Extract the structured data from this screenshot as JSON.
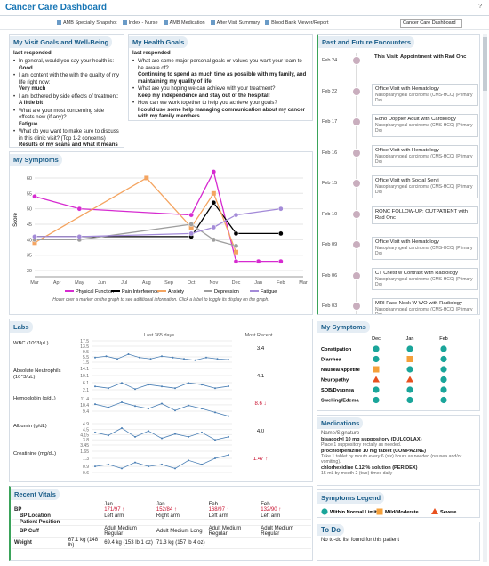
{
  "header": {
    "title": "Cancer Care Dashboard",
    "help": "?"
  },
  "toolbar": {
    "items": [
      "AMB Specialty Snapshot",
      "Index - Nurse",
      "AMB Medication",
      "After Visit Summary",
      "Blood Bank Viewer/Report"
    ],
    "search": "Cancer Care Dashboard"
  },
  "visit_goals": {
    "title": "My Visit Goals and Well-Being",
    "status": "last responded",
    "items": [
      {
        "q": "In general, would you say your health is:",
        "a": "Good"
      },
      {
        "q": "I am content with the with the quality of my life right now:",
        "a": "Very much"
      },
      {
        "q": "I am bothered by side effects of treatment:",
        "a": "A little bit"
      },
      {
        "q": "What are your most concerning side effects now (if any)?",
        "a": "Fatigue"
      },
      {
        "q": "What do you want to make sure to discuss in this clinic visit? (Top 1-2 concerns)",
        "a": "Results of my scans and what it means moving forward"
      }
    ]
  },
  "health_goals": {
    "title": "My Health Goals",
    "status": "last responded",
    "items": [
      {
        "q": "What are some major personal goals or values you want your team to be aware of?",
        "a": "Continuing to spend as much time as possible with my family, and maintaining my quality of life"
      },
      {
        "q": "What are you hoping we can achieve with your treatment?",
        "a": "Keep my independence and stay out of the hospital!"
      },
      {
        "q": "How can we work together to help you achieve your goals?",
        "a": "I could use some help managing communication about my cancer with my family members"
      }
    ]
  },
  "encounters": {
    "title": "Past and Future Encounters",
    "items": [
      {
        "date": "Feb 24",
        "text": "This Visit: Appointment with Rad Onc"
      },
      {
        "date": "Feb 22",
        "text": "Office Visit with Hematology",
        "sub": "Nasopharyngeal carcinoma (CMS-HCC) (Primary Dx)"
      },
      {
        "date": "Feb 17",
        "text": "Echo Doppler Adult with Cardiology",
        "sub": "Nasopharyngeal carcinoma (CMS-HCC) (Primary Dx)"
      },
      {
        "date": "Feb 16",
        "text": "Office Visit with Hematology",
        "sub": "Nasopharyngeal carcinoma (CMS-HCC) (Primary Dx)"
      },
      {
        "date": "Feb 15",
        "text": "Office Visit with Social Servi",
        "sub": "Nasopharyngeal carcinoma (CMS-HCC) (Primary Dx)"
      },
      {
        "date": "Feb 10",
        "text": "RONC FOLLOW-UP: OUTPATIENT with Rad Onc"
      },
      {
        "date": "Feb 09",
        "text": "Office Visit with Hematology",
        "sub": "Nasopharyngeal carcinoma (CMS-HCC) (Primary Dx)"
      },
      {
        "date": "Feb 06",
        "text": "CT Chest w Contrast with Radiology",
        "sub": "Nasopharyngeal carcinoma (CMS-HCC) (Primary Dx)"
      },
      {
        "date": "Feb 03",
        "text": "MRI Face Neck W WO with Radiology",
        "sub": "Nasopharyngeal carcinoma (CMS-HCC) (Primary Dx)"
      }
    ]
  },
  "chart_data": {
    "type": "line",
    "title": "My Symptoms",
    "y_label": "Score",
    "categories": [
      "Mar",
      "Apr",
      "May",
      "Jun",
      "Jul",
      "Aug",
      "Sep",
      "Oct",
      "Nov",
      "Dec",
      "Jan",
      "Feb",
      "Mar"
    ],
    "ylim": [
      28,
      62
    ],
    "yticks": [
      30,
      35,
      40,
      45,
      50,
      55,
      60
    ],
    "grid": true,
    "series": [
      {
        "name": "Physical Function",
        "color": "#d62ad0",
        "marker": "circle",
        "values": [
          54,
          null,
          50,
          null,
          null,
          null,
          null,
          48,
          62,
          33,
          33,
          33,
          null
        ]
      },
      {
        "name": "Pain Interference",
        "color": "#000000",
        "marker": "circle",
        "values": [
          41,
          null,
          41,
          null,
          null,
          null,
          null,
          41,
          52,
          42,
          null,
          42,
          null
        ]
      },
      {
        "name": "Anxiety",
        "color": "#f4a460",
        "marker": "square",
        "values": [
          39,
          null,
          null,
          null,
          null,
          60,
          null,
          44,
          55,
          36,
          null,
          null,
          null
        ]
      },
      {
        "name": "Depression",
        "color": "#9e9e9e",
        "marker": "circle",
        "values": [
          40,
          null,
          40,
          null,
          null,
          null,
          null,
          45,
          40,
          38,
          null,
          null,
          null
        ]
      },
      {
        "name": "Fatigue",
        "color": "#a38ad8",
        "marker": "circle",
        "values": [
          41,
          null,
          41,
          null,
          null,
          null,
          null,
          42,
          44,
          48,
          null,
          50,
          null
        ]
      }
    ],
    "note": "Hover over a marker on the graph to see additional information. Click a label to toggle its display on the graph."
  },
  "labs": {
    "title": "Labs",
    "period": "Last 365 days",
    "recent_header": "Most Recent",
    "rows": [
      {
        "name": "WBC (10^3/µL)",
        "ticks": [
          17.5,
          13.5,
          9.5,
          5.5,
          1.5
        ],
        "ylim": [
          1.5,
          17.5
        ],
        "values": [
          5,
          6,
          4,
          7.5,
          5,
          4,
          6,
          5,
          4,
          3,
          5,
          4,
          3.4
        ],
        "recent": "3.4"
      },
      {
        "name": "Absolute Neutrophils (10^3/µL)",
        "ticks": [
          14.1,
          10.1,
          6.1,
          2.1
        ],
        "ylim": [
          2.1,
          14.1
        ],
        "values": [
          4,
          3,
          6,
          2.5,
          5,
          4,
          3,
          6,
          5,
          3,
          4.1
        ],
        "recent": "4.1"
      },
      {
        "name": "Hemoglobin (g/dL)",
        "ticks": [
          11.4,
          10.4,
          9.4
        ],
        "ylim": [
          8.4,
          11.8
        ],
        "values": [
          10.5,
          10,
          10.8,
          10.2,
          9.8,
          10.6,
          9.5,
          10.3,
          9.8,
          9.2,
          8.6
        ],
        "recent": "8.6",
        "flag": "down"
      },
      {
        "name": "Albumin (g/dL)",
        "ticks": [
          4.9,
          4.5,
          4.15,
          3.8,
          3.45
        ],
        "ylim": [
          3.45,
          4.9
        ],
        "values": [
          4.3,
          4.1,
          4.6,
          4,
          4.4,
          3.9,
          4.2,
          4,
          4.3,
          3.8,
          4
        ],
        "recent": "4.0"
      },
      {
        "name": "Creatinine (mg/dL)",
        "ticks": [
          1.65,
          1.3,
          0.9,
          0.6
        ],
        "ylim": [
          0.6,
          1.65
        ],
        "values": [
          0.9,
          1,
          0.8,
          1.1,
          0.9,
          1,
          0.8,
          1.2,
          1,
          1.3,
          1.47
        ],
        "recent": "1.47",
        "flag": "up"
      }
    ],
    "line_color": "#4a7fb5"
  },
  "symptom_grid": {
    "title": "My Symptoms",
    "columns": [
      "Dec",
      "Jan",
      "Feb"
    ],
    "rows": [
      {
        "name": "Constipation",
        "status": [
          0,
          0,
          0
        ]
      },
      {
        "name": "Diarrhea",
        "status": [
          0,
          1,
          0
        ]
      },
      {
        "name": "Nausea/Appetite",
        "status": [
          1,
          0,
          0
        ]
      },
      {
        "name": "Neuropathy",
        "status": [
          2,
          2,
          0
        ]
      },
      {
        "name": "SOB/Dyspnea",
        "status": [
          0,
          0,
          0
        ]
      },
      {
        "name": "Swelling/Edema",
        "status": [
          0,
          0,
          0
        ]
      }
    ]
  },
  "medications": {
    "title": "Medications",
    "header": "Name/Signature",
    "items": [
      {
        "name": "bisacodyl 10 mg suppository (DULCOLAX)",
        "sig": "Place 1 suppository rectally as needed."
      },
      {
        "name": "prochlorperazine 10 mg tablet (COMPAZINE)",
        "sig": "Take 1 tablet by mouth every 6 (six) hours as needed (nausea and/or vomiting)."
      },
      {
        "name": "chlorhexidine 0.12 % solution (PERIDEX)",
        "sig": "15 mL by mouth 2 (two) times daily"
      }
    ]
  },
  "legend": {
    "title": "Symptoms Legend",
    "items": [
      {
        "label": "Within Normal Limits",
        "shape": "circle",
        "color": "#1aa59a"
      },
      {
        "label": "Mild/Moderate",
        "shape": "square",
        "color": "#f5a03a"
      },
      {
        "label": "Severe",
        "shape": "triangle",
        "color": "#e8501e"
      }
    ]
  },
  "todo": {
    "title": "To Do",
    "text": "No to-do list found for this patient"
  },
  "vitals": {
    "title": "Recent Vitals",
    "columns": [
      "Jan",
      "Jan",
      "Feb",
      "Feb"
    ],
    "rows": [
      {
        "label": "BP",
        "cells": [
          "171/97",
          "152/84",
          "168/97",
          "132/90"
        ],
        "flag": "up"
      },
      {
        "label": "BP Location",
        "cells": [
          "Left arm",
          "Right arm",
          "Left arm",
          "Left arm"
        ],
        "sub": true
      },
      {
        "label": "Patient Position",
        "cells": [
          null,
          null,
          null,
          null
        ],
        "sub": true
      },
      {
        "label": "BP Cuff",
        "cells": [
          "Adult Medium Regular",
          "Adult Medium Long",
          "Adult Medium Regular",
          "Adult Medium Regular"
        ],
        "sub": true
      },
      {
        "label": "Weight",
        "cells": [
          "67.1 kg (148 lb)",
          "69.4 kg (153 lb 1 oz)",
          "71.3 kg (157 lb 4 oz)",
          null
        ]
      }
    ]
  }
}
